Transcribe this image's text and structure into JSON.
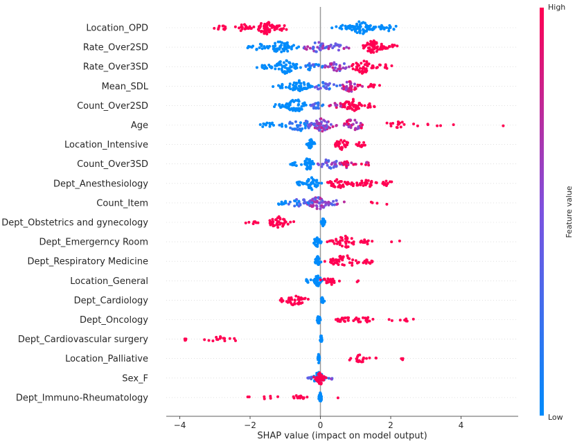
{
  "chart_data": {
    "type": "scatter",
    "subtype": "shap-beeswarm-summary",
    "xlabel": "SHAP value (impact on model output)",
    "x_ticks": [
      -4,
      -2,
      0,
      2,
      4
    ],
    "x_tick_labels": [
      "−4",
      "−2",
      "0",
      "2",
      "4"
    ],
    "xlim": [
      -4.35,
      5.5
    ],
    "colorbar": {
      "label": "Feature value",
      "high_label": "High",
      "low_label": "Low",
      "low_color": "#008bfb",
      "high_color": "#ff0052"
    },
    "zero_line_color": "#999999",
    "features": [
      {
        "name": "Location_OPD",
        "summary": [
          {
            "x": -1.55,
            "n": 60,
            "sp": 0.25,
            "c": 1.0
          },
          {
            "x": -2.8,
            "n": 10,
            "sp": 0.18,
            "c": 1.0
          },
          {
            "x": -2.2,
            "n": 18,
            "sp": 0.2,
            "c": 1.0
          },
          {
            "x": -1.1,
            "n": 14,
            "sp": 0.2,
            "c": 1.0
          },
          {
            "x": 1.15,
            "n": 65,
            "sp": 0.35,
            "c": 0.0
          },
          {
            "x": 1.9,
            "n": 20,
            "sp": 0.25,
            "c": 0.0
          },
          {
            "x": 0.65,
            "n": 10,
            "sp": 0.2,
            "c": 0.0
          }
        ]
      },
      {
        "name": "Rate_Over2SD",
        "summary": [
          {
            "x": -1.1,
            "n": 55,
            "sp": 0.35,
            "c": 0.0
          },
          {
            "x": -1.75,
            "n": 16,
            "sp": 0.25,
            "c": 0.0
          },
          {
            "x": -0.1,
            "n": 30,
            "sp": 0.35,
            "c": 0.5
          },
          {
            "x": 0.45,
            "n": 18,
            "sp": 0.25,
            "c": 0.6
          },
          {
            "x": 1.5,
            "n": 55,
            "sp": 0.3,
            "c": 1.0
          },
          {
            "x": 2.0,
            "n": 12,
            "sp": 0.2,
            "c": 1.0
          }
        ]
      },
      {
        "name": "Rate_Over3SD",
        "summary": [
          {
            "x": -1.0,
            "n": 55,
            "sp": 0.35,
            "c": 0.0
          },
          {
            "x": -1.6,
            "n": 12,
            "sp": 0.2,
            "c": 0.0
          },
          {
            "x": -0.25,
            "n": 20,
            "sp": 0.25,
            "c": 0.2
          },
          {
            "x": 0.45,
            "n": 30,
            "sp": 0.35,
            "c": 0.6
          },
          {
            "x": 1.2,
            "n": 40,
            "sp": 0.3,
            "c": 1.0
          },
          {
            "x": 1.8,
            "n": 10,
            "sp": 0.2,
            "c": 1.0
          }
        ]
      },
      {
        "name": "Mean_SDL",
        "summary": [
          {
            "x": -0.6,
            "n": 50,
            "sp": 0.3,
            "c": 0.0
          },
          {
            "x": -1.15,
            "n": 10,
            "sp": 0.2,
            "c": 0.0
          },
          {
            "x": 0.1,
            "n": 25,
            "sp": 0.3,
            "c": 0.25
          },
          {
            "x": 0.85,
            "n": 35,
            "sp": 0.25,
            "c": 0.8
          },
          {
            "x": 1.55,
            "n": 10,
            "sp": 0.25,
            "c": 1.0
          }
        ]
      },
      {
        "name": "Count_Over2SD",
        "summary": [
          {
            "x": -0.7,
            "n": 50,
            "sp": 0.3,
            "c": 0.0
          },
          {
            "x": -1.15,
            "n": 8,
            "sp": 0.15,
            "c": 0.0
          },
          {
            "x": -0.1,
            "n": 20,
            "sp": 0.2,
            "c": 0.3
          },
          {
            "x": 0.5,
            "n": 15,
            "sp": 0.2,
            "c": 0.7
          },
          {
            "x": 0.9,
            "n": 40,
            "sp": 0.25,
            "c": 1.0
          },
          {
            "x": 1.4,
            "n": 8,
            "sp": 0.15,
            "c": 1.0
          }
        ]
      },
      {
        "name": "Age",
        "summary": [
          {
            "x": -0.6,
            "n": 40,
            "sp": 0.35,
            "c": 0.15
          },
          {
            "x": -1.4,
            "n": 14,
            "sp": 0.35,
            "c": 0.0
          },
          {
            "x": 0.05,
            "n": 55,
            "sp": 0.3,
            "c": 0.6
          },
          {
            "x": 0.9,
            "n": 35,
            "sp": 0.35,
            "c": 0.8
          },
          {
            "x": 2.2,
            "n": 16,
            "sp": 0.5,
            "c": 1.0
          },
          {
            "x": 3.3,
            "n": 5,
            "sp": 0.3,
            "c": 1.0
          },
          {
            "x": 5.2,
            "n": 1,
            "sp": 0.0,
            "c": 1.0
          }
        ]
      },
      {
        "name": "Location_Intensive",
        "summary": [
          {
            "x": -0.27,
            "n": 30,
            "sp": 0.1,
            "c": 0.0
          },
          {
            "x": 0.6,
            "n": 30,
            "sp": 0.2,
            "c": 1.0
          },
          {
            "x": 1.15,
            "n": 12,
            "sp": 0.15,
            "c": 1.0
          }
        ]
      },
      {
        "name": "Count_Over3SD",
        "summary": [
          {
            "x": -0.35,
            "n": 40,
            "sp": 0.15,
            "c": 0.0
          },
          {
            "x": -0.75,
            "n": 8,
            "sp": 0.12,
            "c": 0.0
          },
          {
            "x": 0.25,
            "n": 30,
            "sp": 0.3,
            "c": 0.45
          },
          {
            "x": 0.75,
            "n": 22,
            "sp": 0.2,
            "c": 0.9
          },
          {
            "x": 1.3,
            "n": 6,
            "sp": 0.15,
            "c": 0.9
          }
        ]
      },
      {
        "name": "Dept_Anesthesiology",
        "summary": [
          {
            "x": -0.25,
            "n": 40,
            "sp": 0.2,
            "c": 0.0
          },
          {
            "x": -0.6,
            "n": 8,
            "sp": 0.1,
            "c": 0.0
          },
          {
            "x": 0.5,
            "n": 30,
            "sp": 0.25,
            "c": 1.0
          },
          {
            "x": 1.2,
            "n": 30,
            "sp": 0.35,
            "c": 1.0
          },
          {
            "x": 1.9,
            "n": 10,
            "sp": 0.2,
            "c": 1.0
          }
        ]
      },
      {
        "name": "Count_Item",
        "summary": [
          {
            "x": -0.05,
            "n": 60,
            "sp": 0.3,
            "c": 0.55
          },
          {
            "x": -0.6,
            "n": 25,
            "sp": 0.3,
            "c": 0.2
          },
          {
            "x": -1.1,
            "n": 8,
            "sp": 0.2,
            "c": 0.0
          },
          {
            "x": 0.4,
            "n": 12,
            "sp": 0.2,
            "c": 0.5
          },
          {
            "x": 1.8,
            "n": 4,
            "sp": 0.5,
            "c": 1.0
          }
        ]
      },
      {
        "name": "Dept_Obstetrics and gynecology",
        "summary": [
          {
            "x": -1.2,
            "n": 35,
            "sp": 0.3,
            "c": 1.0
          },
          {
            "x": -1.9,
            "n": 7,
            "sp": 0.2,
            "c": 1.0
          },
          {
            "x": 0.08,
            "n": 25,
            "sp": 0.05,
            "c": 0.0
          }
        ]
      },
      {
        "name": "Dept_Emergerncy Room",
        "summary": [
          {
            "x": -0.1,
            "n": 30,
            "sp": 0.1,
            "c": 0.0
          },
          {
            "x": 0.7,
            "n": 35,
            "sp": 0.35,
            "c": 1.0
          },
          {
            "x": 1.3,
            "n": 12,
            "sp": 0.15,
            "c": 1.0
          },
          {
            "x": 2.3,
            "n": 2,
            "sp": 0.25,
            "c": 1.0
          }
        ]
      },
      {
        "name": "Dept_Respiratory Medicine",
        "summary": [
          {
            "x": -0.08,
            "n": 30,
            "sp": 0.06,
            "c": 0.0
          },
          {
            "x": 0.7,
            "n": 40,
            "sp": 0.4,
            "c": 1.0
          },
          {
            "x": 1.35,
            "n": 15,
            "sp": 0.15,
            "c": 1.0
          }
        ]
      },
      {
        "name": "Location_General",
        "summary": [
          {
            "x": -0.08,
            "n": 35,
            "sp": 0.1,
            "c": 0.0
          },
          {
            "x": -0.35,
            "n": 6,
            "sp": 0.08,
            "c": 0.0
          },
          {
            "x": 0.3,
            "n": 22,
            "sp": 0.2,
            "c": 1.0
          },
          {
            "x": 1.05,
            "n": 2,
            "sp": 0.03,
            "c": 1.0
          }
        ]
      },
      {
        "name": "Dept_Cardiology",
        "summary": [
          {
            "x": -0.7,
            "n": 35,
            "sp": 0.3,
            "c": 1.0
          },
          {
            "x": -1.1,
            "n": 5,
            "sp": 0.05,
            "c": 1.0
          },
          {
            "x": 0.05,
            "n": 20,
            "sp": 0.04,
            "c": 0.0
          }
        ]
      },
      {
        "name": "Dept_Oncology",
        "summary": [
          {
            "x": -0.05,
            "n": 20,
            "sp": 0.05,
            "c": 0.0
          },
          {
            "x": 0.6,
            "n": 18,
            "sp": 0.25,
            "c": 1.0
          },
          {
            "x": 1.2,
            "n": 16,
            "sp": 0.25,
            "c": 1.0
          },
          {
            "x": 2.2,
            "n": 8,
            "sp": 0.4,
            "c": 1.0
          }
        ]
      },
      {
        "name": "Dept_Cardiovascular surgery",
        "summary": [
          {
            "x": 0.02,
            "n": 25,
            "sp": 0.02,
            "c": 0.0
          },
          {
            "x": -2.7,
            "n": 16,
            "sp": 0.45,
            "c": 1.0
          },
          {
            "x": -3.8,
            "n": 4,
            "sp": 0.15,
            "c": 1.0
          }
        ]
      },
      {
        "name": "Location_Palliative",
        "summary": [
          {
            "x": -0.05,
            "n": 25,
            "sp": 0.02,
            "c": 0.0
          },
          {
            "x": 1.1,
            "n": 20,
            "sp": 0.35,
            "c": 1.0
          },
          {
            "x": 2.35,
            "n": 3,
            "sp": 0.1,
            "c": 1.0
          }
        ]
      },
      {
        "name": "Sex_F",
        "summary": [
          {
            "x": -0.05,
            "n": 40,
            "sp": 0.15,
            "c": 0.0
          },
          {
            "x": 0.0,
            "n": 40,
            "sp": 0.12,
            "c": 1.0
          },
          {
            "x": -0.3,
            "n": 5,
            "sp": 0.05,
            "c": 0.5
          },
          {
            "x": 0.3,
            "n": 4,
            "sp": 0.05,
            "c": 0.5
          }
        ]
      },
      {
        "name": "Dept_Immuno-Rheumatology",
        "summary": [
          {
            "x": 0.0,
            "n": 30,
            "sp": 0.04,
            "c": 0.0
          },
          {
            "x": -0.6,
            "n": 14,
            "sp": 0.15,
            "c": 1.0
          },
          {
            "x": -1.4,
            "n": 5,
            "sp": 0.25,
            "c": 1.0
          },
          {
            "x": -2.1,
            "n": 2,
            "sp": 0.15,
            "c": 1.0
          },
          {
            "x": 0.5,
            "n": 1,
            "sp": 0.0,
            "c": 1.0
          }
        ]
      }
    ]
  }
}
